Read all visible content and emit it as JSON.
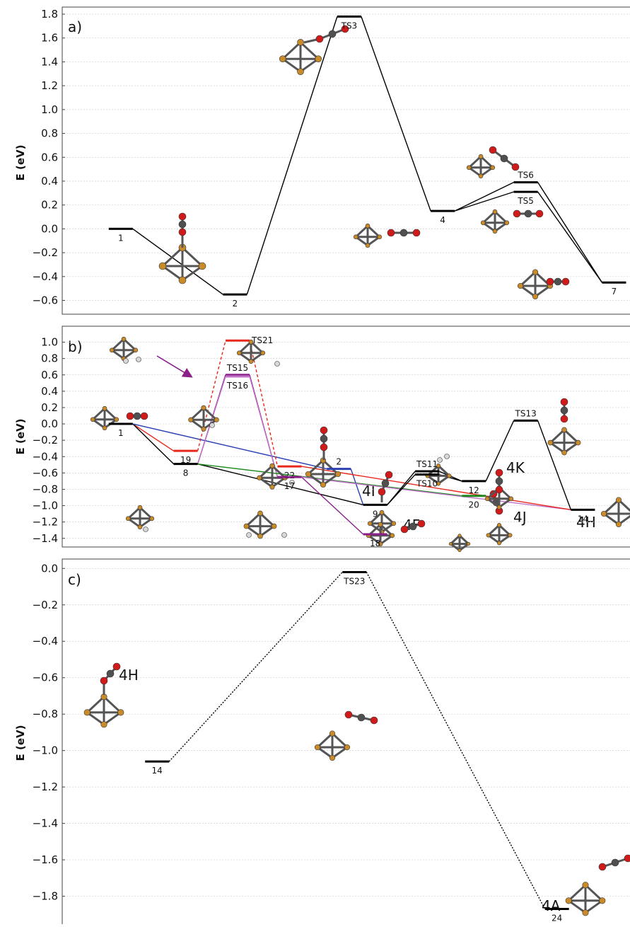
{
  "colors": {
    "black": "#000000",
    "red": "#e8281c",
    "blue": "#2a3fb0",
    "green": "#1f8a1f",
    "purple": "#8a1f8a",
    "violet": "#c070c8",
    "cu": "#c98a2a",
    "c": "#505050",
    "o": "#d11a1a",
    "h": "#d8d8d8"
  },
  "chart_data": [
    {
      "panel_label": "a)",
      "type": "energy_profile",
      "ylabel": "E (eV)",
      "ylim": [
        -0.68,
        1.8
      ],
      "yticks": [
        1.8,
        1.6,
        1.4,
        1.2,
        1.0,
        0.8,
        0.6,
        0.4,
        0.2,
        0.0,
        -0.2,
        -0.4,
        -0.6
      ],
      "grid": true,
      "states": [
        {
          "id": "1",
          "label": "1",
          "x": 0.11,
          "y": 0.0,
          "label_pos": "below",
          "color": "black"
        },
        {
          "id": "2",
          "label": "2",
          "x": 0.33,
          "y": -0.55,
          "label_pos": "below",
          "color": "black"
        },
        {
          "id": "TS3",
          "label": "TS3",
          "x": 0.55,
          "y": 1.78,
          "label_pos": "below",
          "color": "black"
        },
        {
          "id": "4",
          "label": "4",
          "x": 0.73,
          "y": 0.15,
          "label_pos": "below",
          "color": "black"
        },
        {
          "id": "TS6",
          "label": "TS6",
          "x": 0.89,
          "y": 0.39,
          "label_pos": "above",
          "color": "black"
        },
        {
          "id": "TS5",
          "label": "TS5",
          "x": 0.89,
          "y": 0.31,
          "label_pos": "below",
          "color": "black"
        },
        {
          "id": "7",
          "label": "7",
          "x": 1.06,
          "y": -0.45,
          "label_pos": "below",
          "color": "black"
        }
      ],
      "connections": [
        {
          "from": "1",
          "to": "2",
          "color": "black",
          "style": "solid"
        },
        {
          "from": "2",
          "to": "TS3",
          "color": "black",
          "style": "solid"
        },
        {
          "from": "TS3",
          "to": "4",
          "color": "black",
          "style": "solid"
        },
        {
          "from": "4",
          "to": "TS6",
          "color": "black",
          "style": "solid"
        },
        {
          "from": "4",
          "to": "TS5",
          "color": "black",
          "style": "solid"
        },
        {
          "from": "TS6",
          "to": "7",
          "color": "black",
          "style": "solid"
        },
        {
          "from": "TS5",
          "to": "7",
          "color": "black",
          "style": "solid"
        }
      ],
      "big_labels": []
    },
    {
      "panel_label": "b)",
      "type": "energy_profile",
      "ylabel": "E (eV)",
      "ylim": [
        -1.48,
        1.1
      ],
      "yticks": [
        1.0,
        0.8,
        0.6,
        0.4,
        0.2,
        0.0,
        -0.2,
        -0.4,
        -0.6,
        -0.8,
        -1.0,
        -1.2,
        -1.4
      ],
      "grid": true,
      "states": [
        {
          "id": "1",
          "label": "1",
          "x": 0.11,
          "y": 0.0,
          "label_pos": "below",
          "color": "black"
        },
        {
          "id": "19",
          "label": "19",
          "x": 0.235,
          "y": -0.33,
          "label_pos": "below",
          "color": "red"
        },
        {
          "id": "8",
          "label": "8",
          "x": 0.235,
          "y": -0.49,
          "label_pos": "below",
          "color": "black"
        },
        {
          "id": "TS21",
          "label": "TS21",
          "x": 0.335,
          "y": 1.02,
          "label_pos": "right",
          "color": "red"
        },
        {
          "id": "TS15",
          "label": "TS15",
          "x": 0.335,
          "y": 0.6,
          "label_pos": "above",
          "color": "purple"
        },
        {
          "id": "TS16",
          "label": "TS16",
          "x": 0.335,
          "y": 0.58,
          "label_pos": "below",
          "color": "violet"
        },
        {
          "id": "22",
          "label": "22",
          "x": 0.435,
          "y": -0.52,
          "label_pos": "below",
          "color": "red"
        },
        {
          "id": "17",
          "label": "17",
          "x": 0.435,
          "y": -0.65,
          "label_pos": "below",
          "color": "purple"
        },
        {
          "id": "2",
          "label": "2",
          "x": 0.53,
          "y": -0.55,
          "label_pos": "above",
          "color": "blue"
        },
        {
          "id": "9",
          "label": "9",
          "x": 0.6,
          "y": -0.99,
          "label_pos": "below",
          "color": "black"
        },
        {
          "id": "18",
          "label": "18",
          "x": 0.6,
          "y": -1.35,
          "label_pos": "below",
          "color": "purple"
        },
        {
          "id": "TS11",
          "label": "TS11",
          "x": 0.7,
          "y": -0.58,
          "label_pos": "above",
          "color": "black"
        },
        {
          "id": "TS10",
          "label": "TS10",
          "x": 0.7,
          "y": -0.62,
          "label_pos": "below",
          "color": "black"
        },
        {
          "id": "12",
          "label": "12",
          "x": 0.79,
          "y": -0.7,
          "label_pos": "below",
          "color": "black"
        },
        {
          "id": "20",
          "label": "20",
          "x": 0.79,
          "y": -0.88,
          "label_pos": "below",
          "color": "green"
        },
        {
          "id": "TS13",
          "label": "TS13",
          "x": 0.89,
          "y": 0.04,
          "label_pos": "above",
          "color": "black"
        },
        {
          "id": "14",
          "label": "14",
          "x": 1.0,
          "y": -1.05,
          "label_pos": "below",
          "color": "black"
        }
      ],
      "connections": [
        {
          "from": "1",
          "to": "19",
          "color": "red",
          "style": "solid"
        },
        {
          "from": "1",
          "to": "8",
          "color": "black",
          "style": "solid"
        },
        {
          "from": "1",
          "to": "2",
          "color": "blue",
          "style": "solid"
        },
        {
          "from": "19",
          "to": "TS21",
          "color": "red",
          "style": "dashed"
        },
        {
          "from": "TS21",
          "to": "22",
          "color": "red",
          "style": "dashed"
        },
        {
          "from": "8",
          "to": "TS15",
          "color": "purple",
          "style": "solid"
        },
        {
          "from": "TS15",
          "to": "17",
          "color": "purple",
          "style": "solid"
        },
        {
          "from": "8",
          "to": "TS16",
          "color": "violet",
          "style": "solid"
        },
        {
          "from": "TS16",
          "to": "17",
          "color": "violet",
          "style": "solid"
        },
        {
          "from": "8",
          "to": "9",
          "color": "black",
          "style": "solid"
        },
        {
          "from": "8",
          "to": "20",
          "color": "green",
          "style": "solid"
        },
        {
          "from": "2",
          "to": "9",
          "color": "blue",
          "style": "solid"
        },
        {
          "from": "17",
          "to": "18",
          "color": "purple",
          "style": "solid"
        },
        {
          "from": "17",
          "to": "14",
          "color": "violet",
          "style": "solid"
        },
        {
          "from": "22",
          "to": "14",
          "color": "red",
          "style": "solid"
        },
        {
          "from": "9",
          "to": "TS11",
          "color": "black",
          "style": "solid"
        },
        {
          "from": "9",
          "to": "TS10",
          "color": "black",
          "style": "solid"
        },
        {
          "from": "TS11",
          "to": "12",
          "color": "black",
          "style": "solid"
        },
        {
          "from": "TS10",
          "to": "12",
          "color": "black",
          "style": "solid"
        },
        {
          "from": "12",
          "to": "TS13",
          "color": "black",
          "style": "solid"
        },
        {
          "from": "TS13",
          "to": "14",
          "color": "black",
          "style": "solid"
        }
      ],
      "big_labels": [
        "4I",
        "4K",
        "4H",
        "4F",
        "4J"
      ]
    },
    {
      "panel_label": "c)",
      "type": "energy_profile",
      "ylabel": "E (eV)",
      "ylim": [
        -1.93,
        0.04
      ],
      "yticks": [
        0.0,
        -0.2,
        -0.4,
        -0.6,
        -0.8,
        -1.0,
        -1.2,
        -1.4,
        -1.6,
        -1.8
      ],
      "grid": true,
      "states": [
        {
          "id": "14",
          "label": "14",
          "x": 0.18,
          "y": -1.06,
          "label_pos": "below",
          "color": "black"
        },
        {
          "id": "TS23",
          "label": "TS23",
          "x": 0.56,
          "y": -0.02,
          "label_pos": "below",
          "color": "black"
        },
        {
          "id": "24",
          "label": "24",
          "x": 0.95,
          "y": -1.87,
          "label_pos": "below",
          "color": "black"
        }
      ],
      "connections": [
        {
          "from": "14",
          "to": "TS23",
          "color": "black",
          "style": "dotted"
        },
        {
          "from": "TS23",
          "to": "24",
          "color": "black",
          "style": "dotted"
        }
      ],
      "big_labels": [
        "4H",
        "4A"
      ]
    }
  ]
}
